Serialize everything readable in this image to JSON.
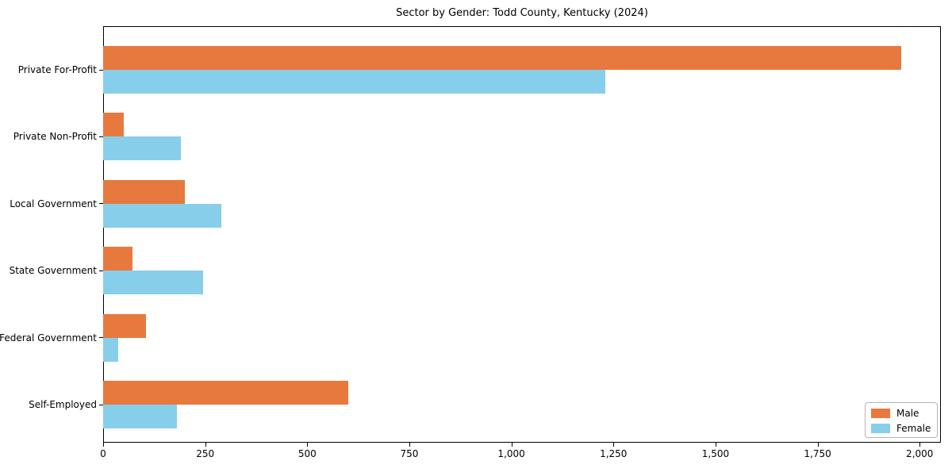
{
  "chart_data": {
    "type": "bar",
    "orientation": "horizontal",
    "title": "Sector by Gender: Todd County, Kentucky (2024)",
    "categories": [
      "Private For-Profit",
      "Private Non-Profit",
      "Local Government",
      "State Government",
      "Federal Government",
      "Self-Employed"
    ],
    "series": [
      {
        "name": "Male",
        "color": "#e8793e",
        "values": [
          1955,
          50,
          200,
          72,
          105,
          600
        ]
      },
      {
        "name": "Female",
        "color": "#87ceeb",
        "values": [
          1230,
          190,
          290,
          245,
          37,
          180
        ]
      }
    ],
    "xlabel": "",
    "ylabel": "",
    "xlim": [
      0,
      2052
    ],
    "xticks": [
      0,
      250,
      500,
      750,
      1000,
      1250,
      1500,
      1750,
      2000
    ],
    "xtick_labels": [
      "0",
      "250",
      "500",
      "750",
      "1,000",
      "1,250",
      "1,500",
      "1,750",
      "2,000"
    ],
    "grid": false,
    "legend_position": "lower right",
    "background_color": "#ffffff",
    "axis_color": "#000000"
  }
}
